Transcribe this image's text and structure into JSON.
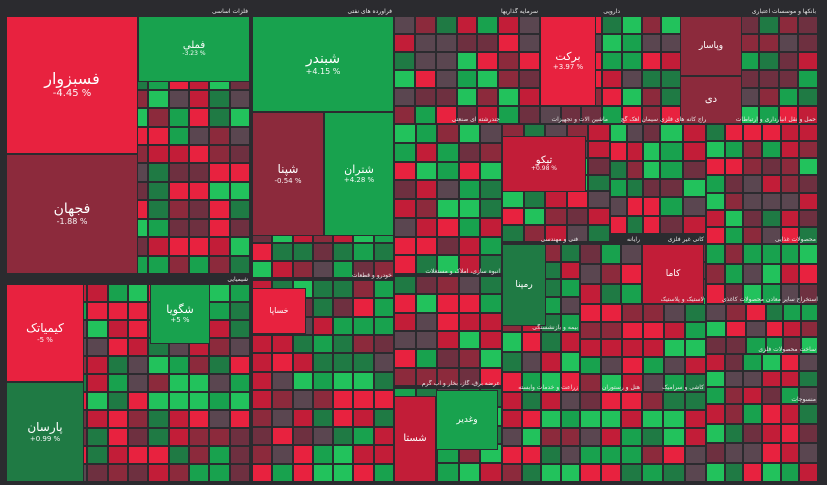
{
  "colors": {
    "strong_red": "#e8223f",
    "red": "#c21d38",
    "dark_red": "#8c2a3c",
    "maroon": "#6e3040",
    "neutral": "#5a4650",
    "dark_green": "#1f7a44",
    "green": "#18a24e",
    "bright_green": "#22c25c"
  },
  "chart_data": {
    "type": "heatmap",
    "title": "",
    "sectors": [
      {
        "name": "فلزات اساسی"
      },
      {
        "name": "فرآورده های نفتی"
      },
      {
        "name": "سرمایه گذاریها"
      },
      {
        "name": "دارویی"
      },
      {
        "name": "بانکها و موسسات اعتباری"
      },
      {
        "name": "شیمیایی"
      },
      {
        "name": "خودرو و قطعات"
      },
      {
        "name": "انبوه سازی، املاک و مستغلات"
      },
      {
        "name": "عرضه برق، گاز، بخار و آب گرم"
      },
      {
        "name": "فنی و مهندسی"
      },
      {
        "name": "رایانه"
      },
      {
        "name": "کانی غیر فلزی"
      },
      {
        "name": "حمل و نقل انبارداری و ارتباطات"
      },
      {
        "name": "ماشین آلات و تجهیزات"
      },
      {
        "name": "سیمان آهک گچ"
      },
      {
        "name": "استخراج کانه های فلزی"
      },
      {
        "name": "محصولات غذایی"
      },
      {
        "name": "بیمه و بازنشستگی"
      },
      {
        "name": "زراعت و خدمات وابسته"
      },
      {
        "name": "هتل و رستوران"
      },
      {
        "name": "کاشی و سرامیک"
      },
      {
        "name": "محصولات کاغذی"
      },
      {
        "name": "چندرشته ای صنعتی"
      },
      {
        "name": "استخراج سایر معادن"
      },
      {
        "name": "ساخت محصولات فلزی"
      },
      {
        "name": "لاستیک و پلاستیک"
      },
      {
        "name": "منسوجات"
      }
    ],
    "tiles": [
      {
        "name": "فسبزوار",
        "change": "-4.45 %"
      },
      {
        "name": "فجهان",
        "change": "-1.88 %"
      },
      {
        "name": "فملی",
        "change": "-3.23 %"
      },
      {
        "name": "شبندر",
        "change": "+4.15 %"
      },
      {
        "name": "شپنا",
        "change": "-0.54 %"
      },
      {
        "name": "شتران",
        "change": "+4.28 %"
      },
      {
        "name": "برکت",
        "change": "+3.97 %"
      },
      {
        "name": "وپاسار",
        "change": ""
      },
      {
        "name": "دی",
        "change": ""
      },
      {
        "name": "کیمیاتک",
        "change": "-5 %"
      },
      {
        "name": "پارسان",
        "change": "+0.99 %"
      },
      {
        "name": "شگویا",
        "change": "+5 %"
      },
      {
        "name": "خساپا",
        "change": ""
      },
      {
        "name": "تیکو",
        "change": "+0.98 %"
      },
      {
        "name": "رمپنا",
        "change": ""
      },
      {
        "name": "کاما",
        "change": ""
      },
      {
        "name": "وغدیر",
        "change": ""
      },
      {
        "name": "شستا",
        "change": ""
      }
    ]
  },
  "sector_labels": [
    "فلزات اساسی",
    "فرآورده های نفتی",
    "سرمایه گذاریها",
    "دارویی",
    "بانکها و موسسات اعتباری",
    "شیمیایی",
    "خودرو و قطعات",
    "انبوه سازی، املاک و مستغلات",
    "عرضه برق، گاز، بخار و آب گرم",
    "فنی و مهندسی",
    "رایانه",
    "کانی غیر فلزی",
    "حمل و نقل انبارداری و ارتباطات",
    "ماشین آلات و تجهیزات",
    "سیمان آهک گچ",
    "استخراج کانه های فلزی",
    "محصولات غذایی",
    "بیمه و بازنشستگی",
    "زراعت و خدمات وابسته",
    "هتل و رستوران",
    "کاشی و سرامیک",
    "محصولات کاغذی",
    "چندرشته ای صنعتی",
    "استخراج سایر معادن",
    "ساخت محصولات فلزی",
    "لاستیک و پلاستیک",
    "منسوجات"
  ]
}
